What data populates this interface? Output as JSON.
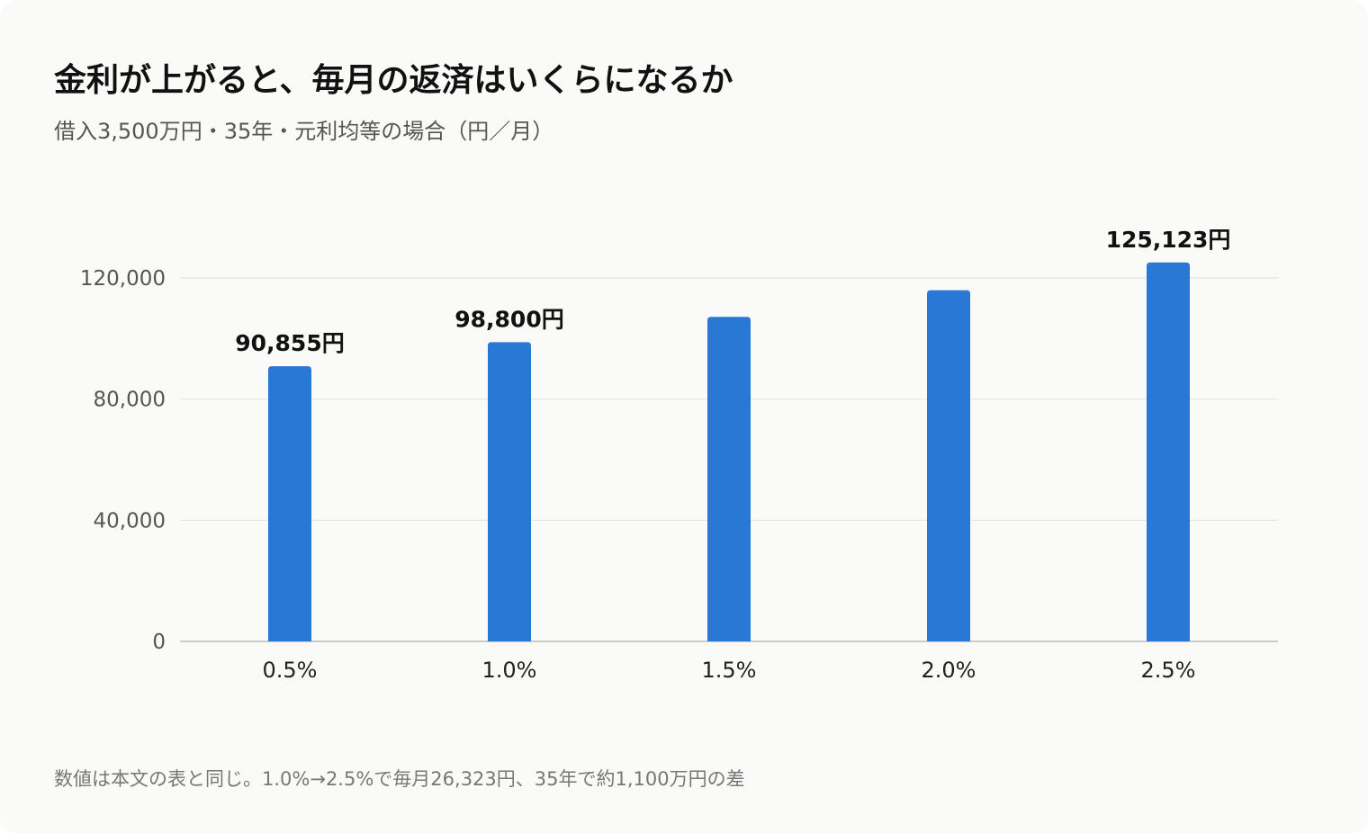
{
  "chart_data": {
    "type": "bar",
    "title": "金利が上がると、毎月の返済はいくらになるか",
    "subtitle": "借入3,500万円・35年・元利均等の場合（円／月）",
    "note": "数値は本文の表と同じ。1.0%→2.5%で毎月26,323円、35年で約1,100万円の差",
    "categories": [
      "0.5%",
      "1.0%",
      "1.5%",
      "2.0%",
      "2.5%"
    ],
    "values": [
      90855,
      98800,
      107163,
      115942,
      125123
    ],
    "data_labels": [
      "90,855円",
      "98,800円",
      "",
      "",
      "125,123円"
    ],
    "ylim": [
      0,
      120000
    ],
    "yticks": [
      0,
      40000,
      80000,
      120000
    ],
    "ytick_labels": [
      "0",
      "40,000",
      "80,000",
      "120,000"
    ],
    "grid": true,
    "bar_color": "#2a78d6",
    "grid_color": "#e4e4e4",
    "axis_color": "#bbbbbb"
  }
}
